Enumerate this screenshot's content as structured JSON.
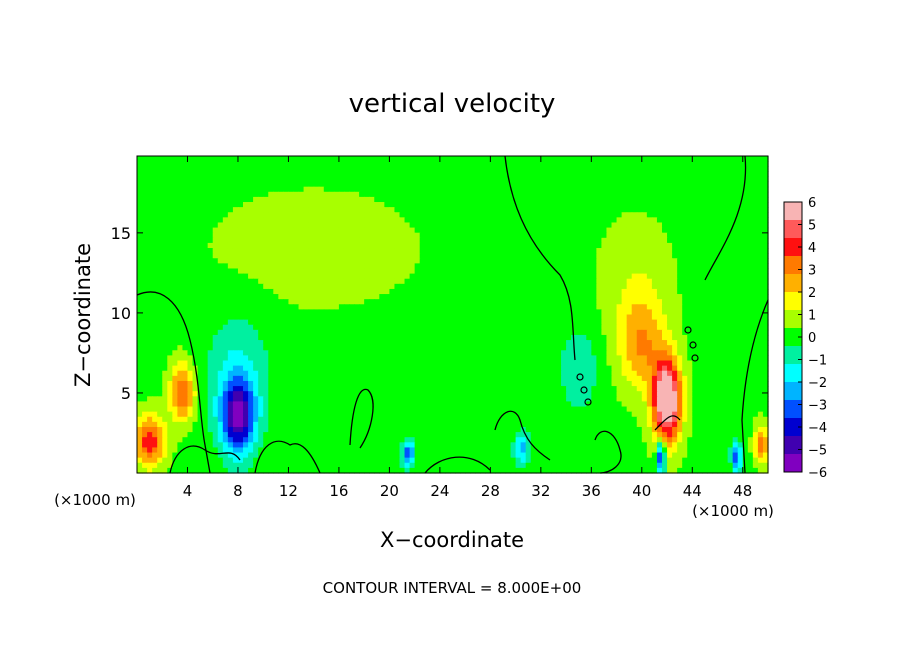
{
  "chart_data": {
    "type": "heatmap",
    "title": "vertical velocity",
    "xlabel": "X−coordinate",
    "ylabel": "Z−coordinate",
    "x_unit_left": "(×1000 m)",
    "x_unit_right": "(×1000 m)",
    "footer": "CONTOUR INTERVAL = 8.000E+00",
    "xlim": [
      0,
      50
    ],
    "ylim": [
      0,
      19.8
    ],
    "x_ticks": [
      4,
      8,
      12,
      16,
      20,
      24,
      28,
      32,
      36,
      40,
      44,
      48
    ],
    "x_tick_labels": [
      "4",
      "8",
      "12",
      "16",
      "20",
      "24",
      "28",
      "32",
      "36",
      "40",
      "44",
      "48"
    ],
    "y_ticks": [
      5,
      10,
      15
    ],
    "y_tick_labels": [
      "5",
      "10",
      "15"
    ],
    "colorbar": {
      "min": -6,
      "max": 6,
      "ticks": [
        6,
        5,
        4,
        3,
        2,
        1,
        0,
        -1,
        -2,
        -3,
        -4,
        -5,
        -6
      ],
      "tick_labels": [
        "6",
        "5",
        "4",
        "3",
        "2",
        "1",
        "0",
        "−1",
        "−2",
        "−3",
        "−4",
        "−5",
        "−6"
      ],
      "colors": [
        "#f8b4b4",
        "#ff5a5a",
        "#ff1010",
        "#ff7a00",
        "#ffb000",
        "#ffff00",
        "#a8ff00",
        "#00ff00",
        "#00f0a0",
        "#00ffff",
        "#00b4ff",
        "#0050ff",
        "#0000d0",
        "#4000b0",
        "#8000c0"
      ]
    },
    "features": [
      {
        "x": 1.0,
        "z": 2.0,
        "w": 4.0,
        "sx": 1.2,
        "sz": 1.6
      },
      {
        "x": 3.6,
        "z": 5.0,
        "w": 3.5,
        "sx": 1.0,
        "sz": 1.8
      },
      {
        "x": 8.0,
        "z": 3.5,
        "w": -5.0,
        "sx": 1.3,
        "sz": 2.2
      },
      {
        "x": 8.0,
        "z": 6.0,
        "w": -1.5,
        "sx": 2.5,
        "sz": 4.0
      },
      {
        "x": 21.5,
        "z": 1.2,
        "w": -3.5,
        "sx": 0.5,
        "sz": 0.8
      },
      {
        "x": 30.5,
        "z": 1.5,
        "w": -2.5,
        "sx": 0.6,
        "sz": 1.0
      },
      {
        "x": 35.0,
        "z": 6.5,
        "w": -1.3,
        "sx": 1.5,
        "sz": 2.5
      },
      {
        "x": 42.0,
        "z": 4.5,
        "w": 7.0,
        "sx": 1.1,
        "sz": 2.6
      },
      {
        "x": 40.0,
        "z": 8.0,
        "w": 2.5,
        "sx": 1.8,
        "sz": 3.0
      },
      {
        "x": 39.5,
        "z": 12.0,
        "w": 0.8,
        "sx": 3.0,
        "sz": 4.0
      },
      {
        "x": 41.5,
        "z": 1.0,
        "w": -4.5,
        "sx": 0.35,
        "sz": 1.0
      },
      {
        "x": 47.5,
        "z": 1.0,
        "w": -3.5,
        "sx": 0.4,
        "sz": 0.9
      },
      {
        "x": 49.5,
        "z": 1.8,
        "w": 3.0,
        "sx": 0.6,
        "sz": 1.2
      },
      {
        "x": 14.0,
        "z": 14.0,
        "w": 0.6,
        "sx": 9.0,
        "sz": 4.0
      }
    ]
  }
}
